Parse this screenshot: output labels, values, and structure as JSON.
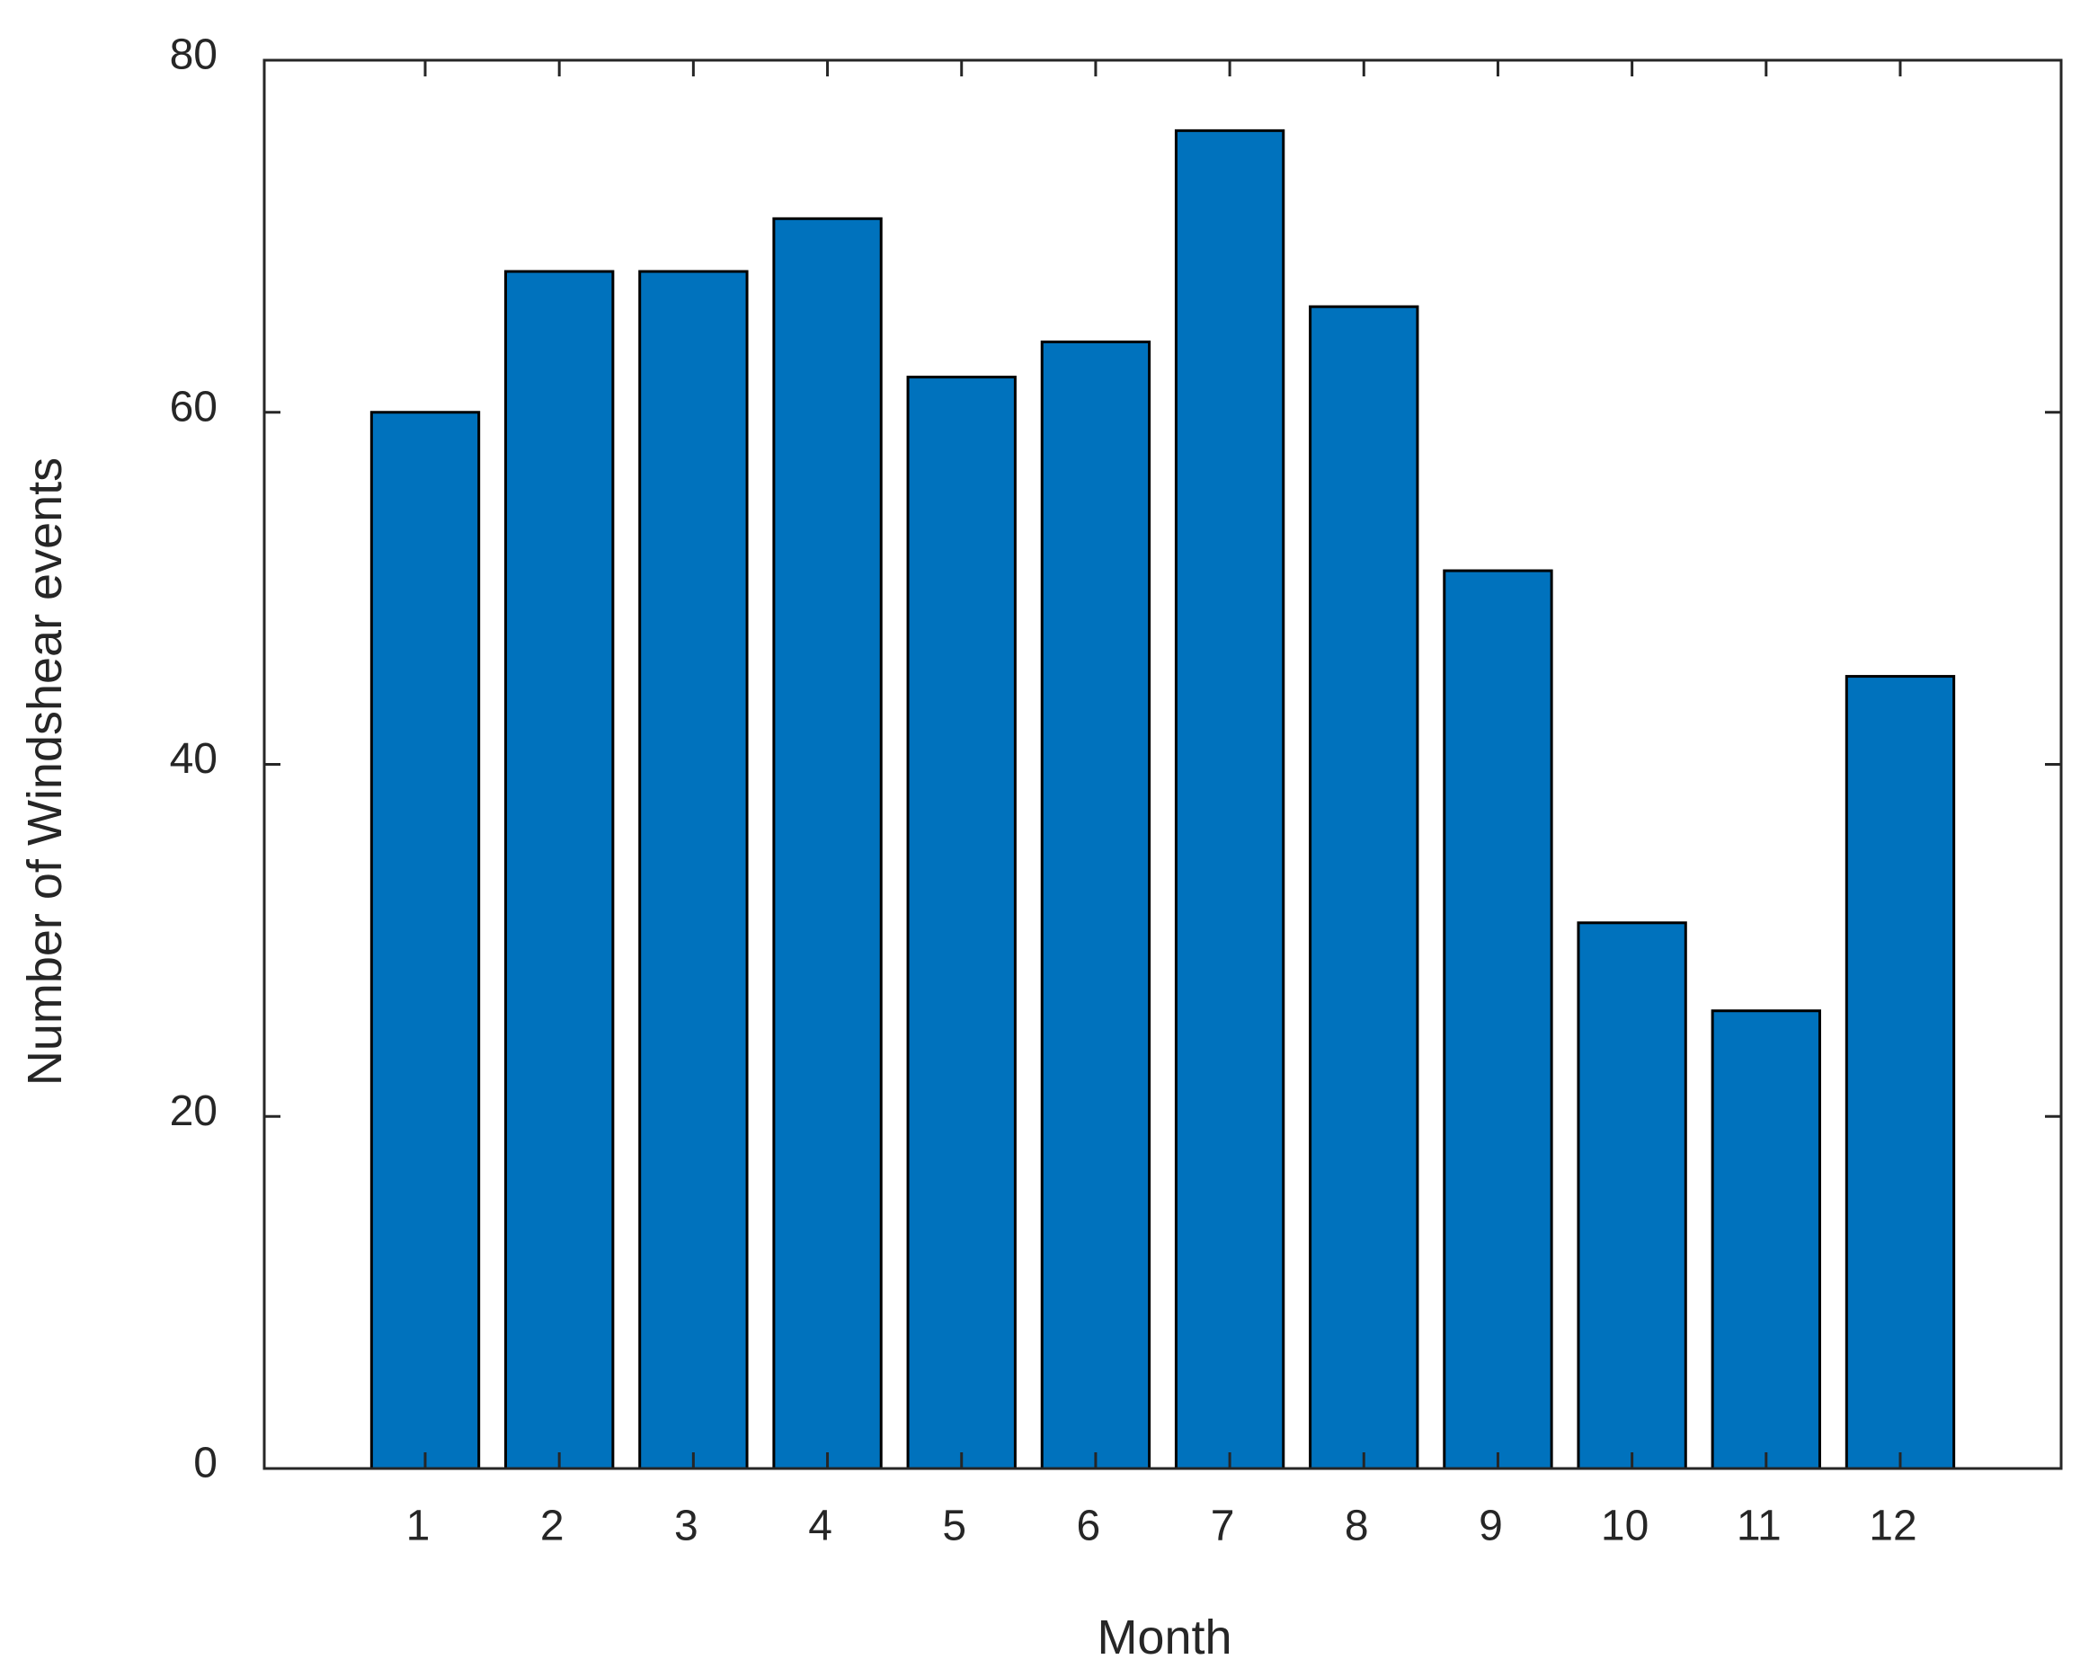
{
  "chart_data": {
    "type": "bar",
    "title": "",
    "xlabel": "Month",
    "ylabel": "Number of Windshear events",
    "categories": [
      "1",
      "2",
      "3",
      "4",
      "5",
      "6",
      "7",
      "8",
      "9",
      "10",
      "11",
      "12"
    ],
    "values": [
      60,
      68,
      68,
      71,
      62,
      64,
      76,
      66,
      51,
      31,
      26,
      45
    ],
    "ylim": [
      0,
      80
    ],
    "yticks": [
      0,
      20,
      40,
      60,
      80
    ],
    "xlim": [
      -0.2,
      13.2
    ],
    "grid": false,
    "legend": "none",
    "colors": {
      "bar": "#0072BD",
      "edge": "#000000",
      "axis": "#262626"
    }
  }
}
